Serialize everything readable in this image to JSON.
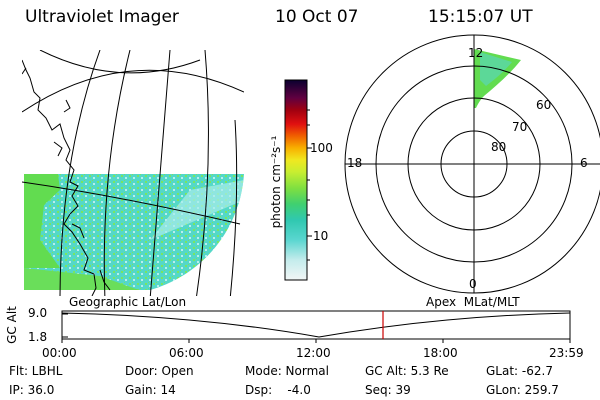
{
  "header": {
    "title": "Ultraviolet Imager",
    "date": "10 Oct 07",
    "time": "15:15:07 UT"
  },
  "geo_panel": {
    "label": "Geographic Lat/Lon"
  },
  "colorbar": {
    "unit_label": "photon cm⁻²s⁻¹",
    "ticks": [
      "100",
      "10"
    ],
    "scale": "log"
  },
  "polar_panel": {
    "label": "Apex  MLat/MLT",
    "mlt_labels": {
      "top": "12",
      "left": "18",
      "right": "6",
      "bottom": "0"
    },
    "mlat_labels": [
      "60",
      "70",
      "80"
    ]
  },
  "altitude_plot": {
    "y_label": "GC Alt",
    "y_ticks": [
      "9.0",
      "1.8"
    ],
    "x_ticks": [
      "00:00",
      "06:00",
      "12:00",
      "18:00",
      "23:59"
    ],
    "current_marker_color": "#cc0000"
  },
  "info": {
    "filter": "Flt: LBHL",
    "ip": "IP: 36.0",
    "door": "Door: Open",
    "gain": "Gain: 14",
    "mode": "Mode: Normal",
    "dsp": "Dsp:    -4.0",
    "gc_alt": "GC Alt: 5.3 Re",
    "seq": "Seq: 39",
    "glat": "GLat: -62.7",
    "glon": "GLon: 259.7"
  },
  "colors": {
    "auroral_green": "#66e04a",
    "auroral_cyan": "#4fd8d0",
    "coast": "#000000"
  }
}
